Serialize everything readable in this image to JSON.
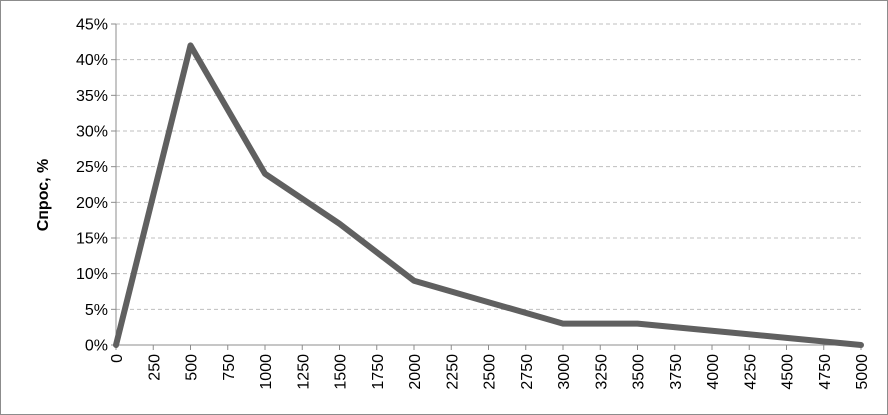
{
  "chart_data": {
    "type": "line",
    "title": "",
    "xlabel": "",
    "ylabel": "Спрос, %",
    "x": [
      0,
      500,
      1000,
      1500,
      2000,
      2500,
      3000,
      3500,
      4000,
      4500,
      5000
    ],
    "x_ticks": [
      "0",
      "250",
      "500",
      "750",
      "1000",
      "1250",
      "1500",
      "1750",
      "2000",
      "2250",
      "2500",
      "2750",
      "3000",
      "3250",
      "3500",
      "3750",
      "4000",
      "4250",
      "4500",
      "4750",
      "5000"
    ],
    "y_ticks": [
      "0%",
      "5%",
      "10%",
      "15%",
      "20%",
      "25%",
      "30%",
      "35%",
      "40%",
      "45%"
    ],
    "xlim": [
      0,
      5000
    ],
    "ylim": [
      0,
      45
    ],
    "grid": "horizontal-dashed",
    "legend": "none",
    "series": [
      {
        "values": [
          0,
          42,
          24,
          17,
          9,
          6,
          3,
          3,
          2,
          1,
          0
        ]
      }
    ],
    "line_color": "#606060",
    "grid_color": "#bfbfbf"
  }
}
